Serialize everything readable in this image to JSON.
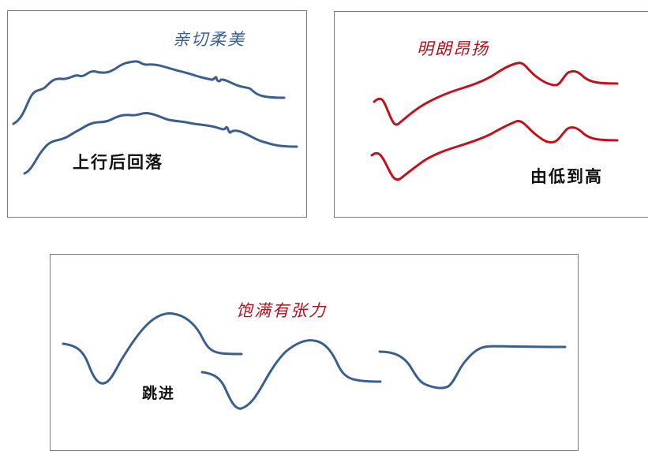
{
  "panels": [
    {
      "title": "亲切柔美",
      "caption": "上行后回落",
      "line_color": "#3a5f8f",
      "title_color": "#3a5f8f",
      "style": "gentle-wave"
    },
    {
      "title": "明朗昂扬",
      "caption": "由低到高",
      "line_color": "#c0121e",
      "title_color": "#b01020",
      "style": "rising-wave"
    },
    {
      "title": "饱满有张力",
      "caption": "跳进",
      "line_color": "#3a5f8f",
      "title_color": "#b01020",
      "style": "leaping-wave"
    }
  ]
}
